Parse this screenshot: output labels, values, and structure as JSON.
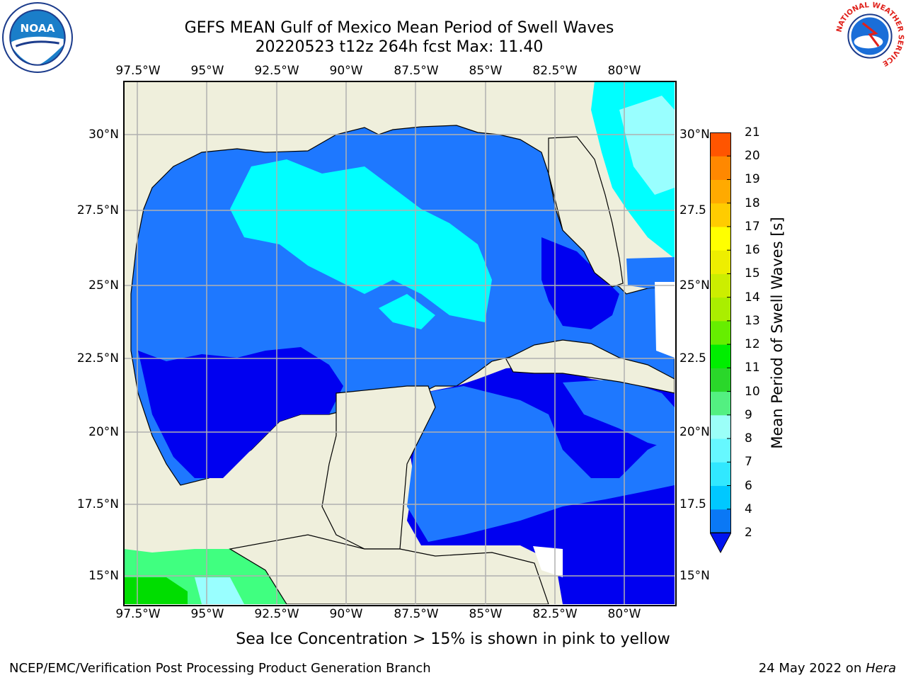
{
  "title_line1": "GEFS MEAN Gulf of Mexico Mean Period of Swell Waves",
  "title_line2": "20220523 t12z 264h fcst   Max: 11.40",
  "footer_note": "Sea Ice Concentration > 15% is shown in pink to yellow",
  "credit_left": "NCEP/EMC/Verification Post Processing Product Generation Branch",
  "credit_date": "24 May 2022 on ",
  "credit_host": "Hera",
  "logos": {
    "left": "noaa-logo",
    "right": "nws-logo",
    "left_text": "NOAA",
    "right_ring_text": "NATIONAL WEATHER SERVICE"
  },
  "map": {
    "lon_labels": [
      "97.5°W",
      "95°W",
      "92.5°W",
      "90°W",
      "87.5°W",
      "85°W",
      "82.5°W",
      "80°W"
    ],
    "lat_labels_left": [
      "30°N",
      "27.5°N",
      "25°N",
      "22.5°N",
      "20°N",
      "17.5°N",
      "15°N"
    ],
    "lat_labels_right": [
      "30°N",
      "27.5",
      "25°N",
      "22.5",
      "20°N",
      "17.5",
      "15°N"
    ],
    "extent": {
      "lon_min": -98.0,
      "lon_max": -78.2,
      "lat_min": 14.0,
      "lat_max": 31.8
    },
    "colors": {
      "land": "#efefdc",
      "grid": "#b0b0b0",
      "coast": "#000000",
      "missing": "#ffffff"
    }
  },
  "colorbar": {
    "title": "Mean Period of Swell Waves [s]",
    "labels": [
      "2",
      "4",
      "6",
      "7",
      "8",
      "9",
      "10",
      "11",
      "12",
      "13",
      "14",
      "15",
      "16",
      "17",
      "18",
      "19",
      "20",
      "21"
    ],
    "colors": [
      "#0a78f5",
      "#00c8ff",
      "#31e8ff",
      "#66f8ff",
      "#9bfff8",
      "#53f081",
      "#2ad72a",
      "#00ee00",
      "#66ee00",
      "#aaee00",
      "#ccee00",
      "#eeee00",
      "#ffff00",
      "#ffcc00",
      "#ffaa00",
      "#ff8800",
      "#ff5500",
      "#ff2200",
      "#ff0000"
    ],
    "extend_color": "#0014f0",
    "level_colors": {
      "2": "#0000f0",
      "4": "#1e78ff",
      "6": "#00ffff",
      "7": "#33eeff",
      "8": "#99ffff",
      "9": "#40ff80",
      "10": "#00dd00"
    }
  }
}
